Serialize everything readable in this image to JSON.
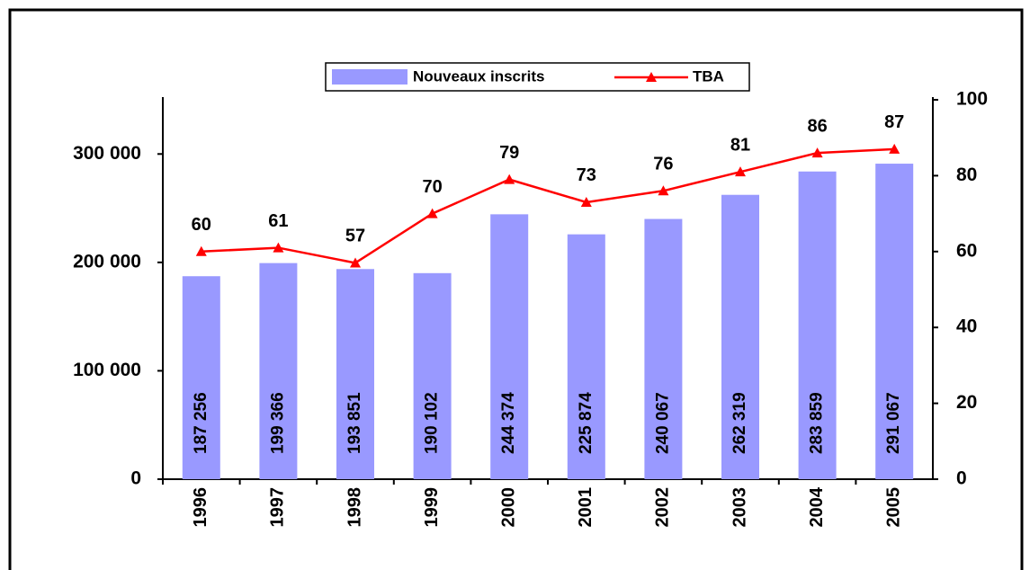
{
  "chart_data": {
    "type": "bar",
    "categories": [
      "1996",
      "1997",
      "1998",
      "1999",
      "2000",
      "2001",
      "2002",
      "2003",
      "2004",
      "2005"
    ],
    "series": [
      {
        "name": "Nouveaux inscrits",
        "type": "bar",
        "color": "#9999ff",
        "values": [
          187256,
          199366,
          193851,
          190102,
          244374,
          225874,
          240067,
          262319,
          283859,
          291067
        ],
        "value_labels": [
          "187 256",
          "199 366",
          "193 851",
          "190 102",
          "244 374",
          "225 874",
          "240 067",
          "262 319",
          "283 859",
          "291 067"
        ]
      },
      {
        "name": "TBA",
        "type": "line",
        "axis": "y2",
        "color": "#ff0000",
        "values": [
          60,
          61,
          57,
          70,
          79,
          73,
          76,
          81,
          86,
          87
        ]
      }
    ],
    "ylim": [
      0,
      350000
    ],
    "yticks": [
      0,
      {
        "value": 100000,
        "label": "100 000"
      },
      {
        "value": 200000,
        "label": "200 000"
      },
      {
        "value": 300000,
        "label": "300 000"
      }
    ],
    "y2lim": [
      0,
      100
    ],
    "y2ticks": [
      0,
      20,
      40,
      60,
      80,
      100
    ],
    "legend": "top"
  }
}
